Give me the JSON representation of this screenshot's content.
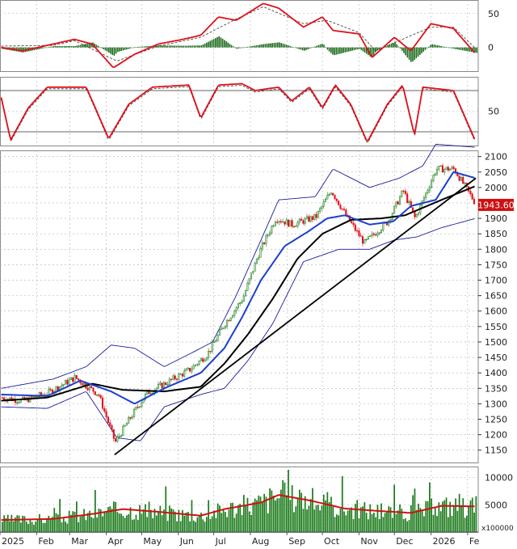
{
  "colors": {
    "up": "#1a7a1a",
    "down": "#e0101a",
    "bollinger": "#1a1aa0",
    "ma_fast": "#1a3fd0",
    "ma_slow": "#000000",
    "trendline": "#000000",
    "indicator_main": "#e0101a",
    "indicator_signal": "#333333",
    "histogram": "#1a6a1a",
    "volume_ma": "#d01010",
    "grid": "#b0b0b0",
    "price_badge_bg": "#cc1111",
    "price_badge_fg": "#ffffff"
  },
  "chart_data": [
    {
      "panel": "macd",
      "type": "line",
      "y_ticks": [
        "50",
        "0"
      ],
      "ylim": [
        -35,
        70
      ],
      "main_line": [
        [
          "2025-01-02",
          0
        ],
        [
          "2025-01-20",
          -5
        ],
        [
          "2025-02-15",
          5
        ],
        [
          "2025-03-05",
          12
        ],
        [
          "2025-03-20",
          5
        ],
        [
          "2025-04-07",
          -30
        ],
        [
          "2025-04-25",
          -10
        ],
        [
          "2025-05-15",
          5
        ],
        [
          "2025-06-05",
          12
        ],
        [
          "2025-06-20",
          18
        ],
        [
          "2025-07-05",
          45
        ],
        [
          "2025-07-20",
          40
        ],
        [
          "2025-08-12",
          65
        ],
        [
          "2025-08-25",
          58
        ],
        [
          "2025-09-15",
          30
        ],
        [
          "2025-10-01",
          45
        ],
        [
          "2025-10-10",
          25
        ],
        [
          "2025-11-01",
          20
        ],
        [
          "2025-11-12",
          -15
        ],
        [
          "2025-12-01",
          15
        ],
        [
          "2025-12-15",
          -5
        ],
        [
          "2026-01-01",
          35
        ],
        [
          "2026-01-20",
          28
        ],
        [
          "2026-02-08",
          -10
        ]
      ],
      "signal_line": [
        [
          "2025-01-02",
          2
        ],
        [
          "2025-02-15",
          3
        ],
        [
          "2025-03-05",
          10
        ],
        [
          "2025-04-10",
          -20
        ],
        [
          "2025-05-15",
          2
        ],
        [
          "2025-06-20",
          15
        ],
        [
          "2025-07-20",
          42
        ],
        [
          "2025-08-12",
          60
        ],
        [
          "2025-09-15",
          35
        ],
        [
          "2025-10-05",
          40
        ],
        [
          "2025-11-01",
          22
        ],
        [
          "2025-11-15",
          -5
        ],
        [
          "2025-12-05",
          10
        ],
        [
          "2026-01-01",
          30
        ],
        [
          "2026-01-20",
          30
        ],
        [
          "2026-02-08",
          -2
        ]
      ]
    },
    {
      "panel": "stochastic",
      "type": "line",
      "y_ticks": [
        "50"
      ],
      "levels": [
        80,
        20
      ],
      "ylim": [
        0,
        100
      ],
      "main_line": [
        [
          "2025-01-02",
          70
        ],
        [
          "2025-01-10",
          8
        ],
        [
          "2025-01-25",
          55
        ],
        [
          "2025-02-10",
          85
        ],
        [
          "2025-03-15",
          85
        ],
        [
          "2025-04-03",
          10
        ],
        [
          "2025-04-20",
          60
        ],
        [
          "2025-05-10",
          85
        ],
        [
          "2025-06-10",
          88
        ],
        [
          "2025-06-20",
          40
        ],
        [
          "2025-07-05",
          88
        ],
        [
          "2025-07-25",
          90
        ],
        [
          "2025-08-05",
          80
        ],
        [
          "2025-08-25",
          85
        ],
        [
          "2025-09-05",
          65
        ],
        [
          "2025-09-20",
          85
        ],
        [
          "2025-10-01",
          55
        ],
        [
          "2025-10-12",
          88
        ],
        [
          "2025-10-25",
          60
        ],
        [
          "2025-11-08",
          5
        ],
        [
          "2025-11-25",
          60
        ],
        [
          "2025-12-08",
          88
        ],
        [
          "2025-12-18",
          15
        ],
        [
          "2025-12-25",
          85
        ],
        [
          "2026-01-20",
          80
        ],
        [
          "2026-02-08",
          5
        ]
      ]
    },
    {
      "panel": "price",
      "type": "candlestick",
      "y_ticks": [
        "2100",
        "2050",
        "2000",
        "1950",
        "1900",
        "1850",
        "1800",
        "1750",
        "1700",
        "1650",
        "1600",
        "1550",
        "1500",
        "1450",
        "1400",
        "1350",
        "1300",
        "1250",
        "1200",
        "1150"
      ],
      "ylim": [
        1110,
        2120
      ],
      "last_price": "1943.60",
      "close_path": [
        [
          "2025-01-02",
          1320
        ],
        [
          "2025-01-20",
          1310
        ],
        [
          "2025-02-10",
          1335
        ],
        [
          "2025-03-05",
          1385
        ],
        [
          "2025-03-25",
          1330
        ],
        [
          "2025-04-08",
          1175
        ],
        [
          "2025-04-20",
          1250
        ],
        [
          "2025-05-05",
          1335
        ],
        [
          "2025-05-20",
          1365
        ],
        [
          "2025-06-10",
          1410
        ],
        [
          "2025-06-25",
          1460
        ],
        [
          "2025-07-10",
          1560
        ],
        [
          "2025-07-25",
          1640
        ],
        [
          "2025-08-08",
          1790
        ],
        [
          "2025-08-22",
          1900
        ],
        [
          "2025-09-05",
          1880
        ],
        [
          "2025-09-25",
          1905
        ],
        [
          "2025-10-08",
          1990
        ],
        [
          "2025-10-22",
          1900
        ],
        [
          "2025-11-05",
          1820
        ],
        [
          "2025-11-25",
          1890
        ],
        [
          "2025-12-08",
          1990
        ],
        [
          "2025-12-18",
          1900
        ],
        [
          "2026-01-05",
          2060
        ],
        [
          "2026-01-20",
          2060
        ],
        [
          "2026-02-08",
          1943.6
        ]
      ],
      "ma_fast": [
        [
          "2025-01-02",
          1330
        ],
        [
          "2025-02-10",
          1325
        ],
        [
          "2025-03-10",
          1375
        ],
        [
          "2025-04-05",
          1340
        ],
        [
          "2025-04-25",
          1300
        ],
        [
          "2025-05-20",
          1350
        ],
        [
          "2025-06-20",
          1400
        ],
        [
          "2025-07-10",
          1480
        ],
        [
          "2025-07-25",
          1580
        ],
        [
          "2025-08-10",
          1700
        ],
        [
          "2025-08-30",
          1810
        ],
        [
          "2025-09-20",
          1860
        ],
        [
          "2025-10-05",
          1900
        ],
        [
          "2025-10-20",
          1910
        ],
        [
          "2025-11-10",
          1880
        ],
        [
          "2025-11-30",
          1890
        ],
        [
          "2025-12-15",
          1940
        ],
        [
          "2026-01-05",
          1960
        ],
        [
          "2026-01-20",
          2050
        ],
        [
          "2026-02-08",
          2030
        ]
      ],
      "ma_slow": [
        [
          "2025-01-02",
          1310
        ],
        [
          "2025-02-10",
          1320
        ],
        [
          "2025-03-20",
          1365
        ],
        [
          "2025-04-15",
          1345
        ],
        [
          "2025-05-20",
          1340
        ],
        [
          "2025-06-20",
          1355
        ],
        [
          "2025-07-10",
          1430
        ],
        [
          "2025-07-30",
          1525
        ],
        [
          "2025-08-20",
          1640
        ],
        [
          "2025-09-10",
          1770
        ],
        [
          "2025-10-01",
          1850
        ],
        [
          "2025-10-25",
          1895
        ],
        [
          "2025-11-20",
          1900
        ],
        [
          "2025-12-10",
          1910
        ],
        [
          "2026-01-10",
          1960
        ],
        [
          "2026-02-08",
          2005
        ]
      ],
      "boll_upper": [
        [
          "2025-01-02",
          1350
        ],
        [
          "2025-02-15",
          1380
        ],
        [
          "2025-03-15",
          1420
        ],
        [
          "2025-04-05",
          1490
        ],
        [
          "2025-04-25",
          1480
        ],
        [
          "2025-05-20",
          1420
        ],
        [
          "2025-06-10",
          1460
        ],
        [
          "2025-06-30",
          1500
        ],
        [
          "2025-07-20",
          1650
        ],
        [
          "2025-08-10",
          1830
        ],
        [
          "2025-08-25",
          1960
        ],
        [
          "2025-09-25",
          1970
        ],
        [
          "2025-10-10",
          2060
        ],
        [
          "2025-11-10",
          2000
        ],
        [
          "2025-12-05",
          2030
        ],
        [
          "2025-12-25",
          2070
        ],
        [
          "2026-01-05",
          2140
        ],
        [
          "2026-02-08",
          2130
        ]
      ],
      "boll_lower": [
        [
          "2025-01-02",
          1290
        ],
        [
          "2025-02-10",
          1285
        ],
        [
          "2025-03-15",
          1340
        ],
        [
          "2025-04-10",
          1190
        ],
        [
          "2025-04-30",
          1180
        ],
        [
          "2025-05-20",
          1290
        ],
        [
          "2025-06-20",
          1330
        ],
        [
          "2025-07-10",
          1350
        ],
        [
          "2025-07-30",
          1440
        ],
        [
          "2025-08-20",
          1560
        ],
        [
          "2025-09-15",
          1760
        ],
        [
          "2025-10-15",
          1800
        ],
        [
          "2025-11-10",
          1800
        ],
        [
          "2025-12-01",
          1830
        ],
        [
          "2025-12-20",
          1840
        ],
        [
          "2026-01-10",
          1870
        ],
        [
          "2026-02-08",
          1900
        ]
      ],
      "trendline": [
        [
          "2025-04-08",
          1135
        ],
        [
          "2026-02-08",
          2030
        ]
      ]
    },
    {
      "panel": "volume",
      "type": "bar",
      "unit": "x100000",
      "y_ticks": [
        "10000",
        "5000"
      ],
      "ylim": [
        0,
        12000
      ],
      "volume_ma": [
        [
          "2025-01-02",
          2200
        ],
        [
          "2025-02-15",
          2400
        ],
        [
          "2025-03-20",
          3300
        ],
        [
          "2025-04-15",
          4200
        ],
        [
          "2025-05-15",
          3700
        ],
        [
          "2025-06-20",
          3000
        ],
        [
          "2025-07-10",
          4200
        ],
        [
          "2025-08-10",
          5400
        ],
        [
          "2025-08-25",
          6800
        ],
        [
          "2025-09-20",
          5800
        ],
        [
          "2025-10-20",
          4300
        ],
        [
          "2025-11-15",
          3900
        ],
        [
          "2025-12-15",
          3500
        ],
        [
          "2026-01-10",
          4800
        ],
        [
          "2026-02-08",
          4700
        ]
      ]
    }
  ],
  "x_axis": {
    "labels": [
      "2025",
      "Feb",
      "Mar",
      "Apr",
      "May",
      "Jun",
      "Jul",
      "Aug",
      "Sep",
      "Oct",
      "Nov",
      "Dec",
      "2026",
      "Fe"
    ],
    "dates": [
      "2025-01-01",
      "2025-02-01",
      "2025-03-01",
      "2025-04-01",
      "2025-05-01",
      "2025-06-01",
      "2025-07-01",
      "2025-08-01",
      "2025-09-01",
      "2025-10-01",
      "2025-11-01",
      "2025-12-01",
      "2026-01-01",
      "2026-02-01"
    ]
  }
}
